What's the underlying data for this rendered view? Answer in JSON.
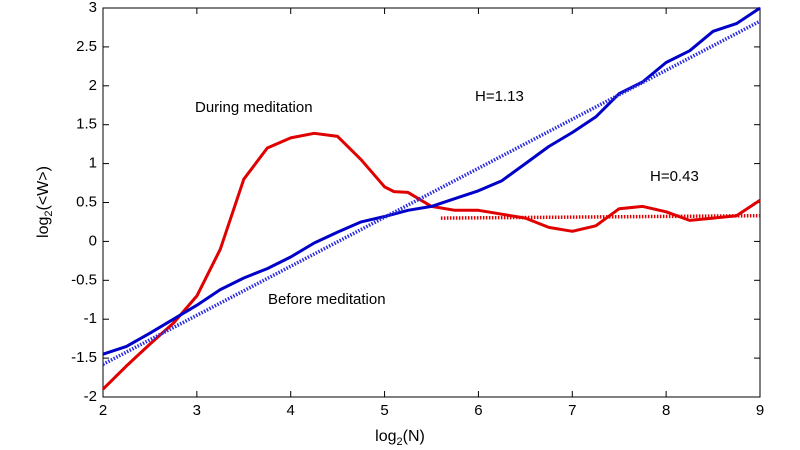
{
  "chart_data": {
    "type": "line",
    "x_label": {
      "base": "log",
      "sub": "2",
      "arg": "(N)"
    },
    "y_label": {
      "base": "log",
      "sub": "2",
      "arg": "(<W>)"
    },
    "xlim": [
      2,
      9
    ],
    "ylim": [
      -2,
      3
    ],
    "xticks": [
      2,
      3,
      4,
      5,
      6,
      7,
      8,
      9
    ],
    "yticks": [
      -2,
      -1.5,
      -1,
      -0.5,
      0,
      0.5,
      1,
      1.5,
      2,
      2.5,
      3
    ],
    "grid": false,
    "series": [
      {
        "name": "During meditation",
        "color": "#e00000",
        "style": "solid",
        "x": [
          2,
          2.25,
          2.5,
          2.75,
          3,
          3.25,
          3.5,
          3.75,
          4,
          4.25,
          4.5,
          4.75,
          5,
          5.1,
          5.25,
          5.5,
          5.75,
          6,
          6.25,
          6.5,
          6.75,
          7,
          7.25,
          7.5,
          7.75,
          8,
          8.25,
          8.5,
          8.75,
          9
        ],
        "values": [
          -1.9,
          -1.6,
          -1.32,
          -1.05,
          -0.7,
          -0.1,
          0.8,
          1.2,
          1.33,
          1.39,
          1.35,
          1.05,
          0.7,
          0.64,
          0.63,
          0.45,
          0.4,
          0.4,
          0.35,
          0.3,
          0.18,
          0.13,
          0.2,
          0.42,
          0.45,
          0.38,
          0.27,
          0.3,
          0.33,
          0.53
        ]
      },
      {
        "name": "Before meditation",
        "color": "#0000c8",
        "style": "solid",
        "x": [
          2,
          2.25,
          2.5,
          2.75,
          3,
          3.25,
          3.5,
          3.75,
          4,
          4.25,
          4.5,
          4.75,
          5,
          5.25,
          5.5,
          5.75,
          6,
          6.25,
          6.5,
          6.75,
          7,
          7.25,
          7.5,
          7.75,
          8,
          8.25,
          8.5,
          8.75,
          9
        ],
        "values": [
          -1.45,
          -1.35,
          -1.18,
          -1,
          -0.82,
          -0.62,
          -0.47,
          -0.35,
          -0.2,
          -0.02,
          0.12,
          0.25,
          0.32,
          0.4,
          0.45,
          0.55,
          0.65,
          0.78,
          1,
          1.22,
          1.4,
          1.6,
          1.9,
          2.05,
          2.3,
          2.45,
          2.7,
          2.8,
          3
        ]
      },
      {
        "name": "H=1.13",
        "color": "#2a2ae0",
        "style": "dotted",
        "label_color": "#00007a",
        "x": [
          2,
          9
        ],
        "values": [
          -1.58,
          2.83
        ]
      },
      {
        "name": "H=0.43",
        "color": "#e00000",
        "style": "dotted",
        "x": [
          5.6,
          9
        ],
        "values": [
          0.3,
          0.33
        ]
      }
    ]
  }
}
